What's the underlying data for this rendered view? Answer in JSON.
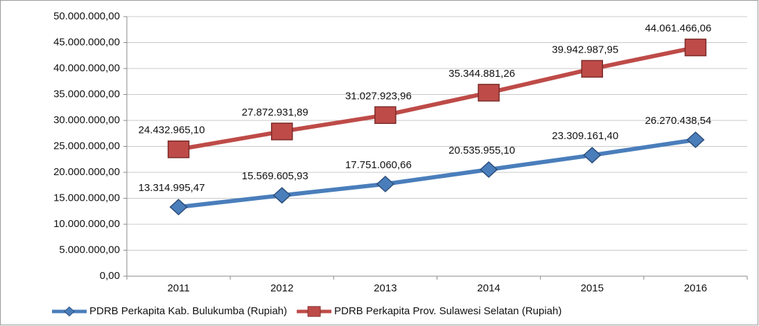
{
  "chart_data": {
    "type": "line",
    "categories": [
      "2011",
      "2012",
      "2013",
      "2014",
      "2015",
      "2016"
    ],
    "series": [
      {
        "name": "PDRB Perkapita Kab. Bulukumba (Rupiah)",
        "color": "#4a7ebb",
        "marker": "diamond",
        "values": [
          13314995.47,
          15569605.93,
          17751060.66,
          20535955.1,
          23309161.4,
          26270438.54
        ],
        "value_labels": [
          "13.314.995,47",
          "15.569.605,93",
          "17.751.060,66",
          "20.535.955,10",
          "23.309.161,40",
          "26.270.438,54"
        ]
      },
      {
        "name": "PDRB Perkapita Prov. Sulawesi Selatan (Rupiah)",
        "color": "#be4b48",
        "marker": "square",
        "values": [
          24432965.1,
          27872931.89,
          31027923.96,
          35344881.26,
          39942987.95,
          44061466.06
        ],
        "value_labels": [
          "24.432.965,10",
          "27.872.931,89",
          "31.027.923,96",
          "35.344.881,26",
          "39.942.987,95",
          "44.061.466,06"
        ]
      }
    ],
    "ylim": [
      0,
      50000000
    ],
    "yticks": [
      {
        "value": 0,
        "label": "0,00"
      },
      {
        "value": 5000000,
        "label": "5.000.000,00"
      },
      {
        "value": 10000000,
        "label": "10.000.000,00"
      },
      {
        "value": 15000000,
        "label": "15.000.000,00"
      },
      {
        "value": 20000000,
        "label": "20.000.000,00"
      },
      {
        "value": 25000000,
        "label": "25.000.000,00"
      },
      {
        "value": 30000000,
        "label": "30.000.000,00"
      },
      {
        "value": 35000000,
        "label": "35.000.000,00"
      },
      {
        "value": 40000000,
        "label": "40.000.000,00"
      },
      {
        "value": 45000000,
        "label": "45.000.000,00"
      },
      {
        "value": 50000000,
        "label": "50.000.000,00"
      }
    ],
    "grid": true,
    "legend": "bottom"
  }
}
